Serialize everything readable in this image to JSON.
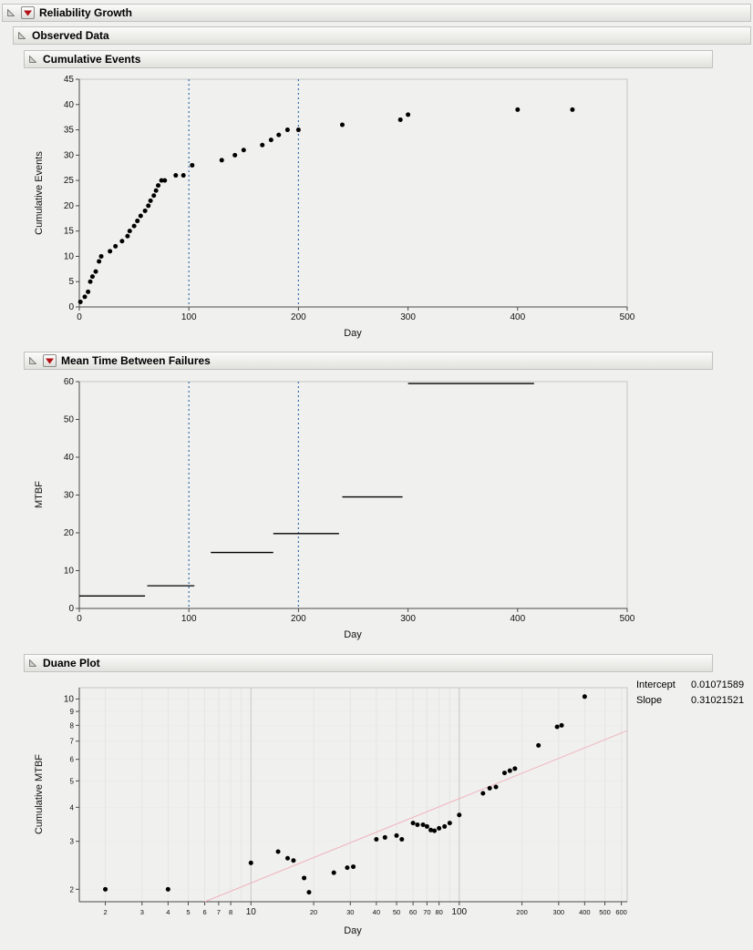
{
  "window": {
    "background": "#f0f0ee"
  },
  "headers": {
    "reliability_growth": "Reliability Growth",
    "observed_data": "Observed Data",
    "cumulative_events": "Cumulative Events",
    "mtbf": "Mean Time Between Failures",
    "duane": "Duane Plot"
  },
  "duane_fit": {
    "intercept_label": "Intercept",
    "intercept_value": "0.01071589",
    "slope_label": "Slope",
    "slope_value": "0.31021521"
  },
  "colors": {
    "reference_line": "#3a6fb0",
    "fit_line": "#f0b3be",
    "point": "#000000"
  },
  "chart_data": [
    {
      "id": "cumulative_events",
      "type": "scatter",
      "title": "Cumulative Events",
      "xlabel": "Day",
      "ylabel": "Cumulative Events",
      "xscale": "linear",
      "yscale": "linear",
      "xlim": [
        0,
        500
      ],
      "ylim": [
        0,
        45
      ],
      "xticks": [
        0,
        100,
        200,
        300,
        400,
        500
      ],
      "yticks": [
        0,
        5,
        10,
        15,
        20,
        25,
        30,
        35,
        40,
        45
      ],
      "ref_lines_x": [
        100,
        200
      ],
      "ref_line_color": "#3a6fb0",
      "x": [
        1,
        5,
        8,
        10,
        12,
        15,
        18,
        20,
        28,
        33,
        39,
        44,
        46,
        50,
        53,
        56,
        60,
        63,
        65,
        68,
        70,
        72,
        75,
        78,
        88,
        95,
        103,
        130,
        142,
        150,
        167,
        175,
        182,
        190,
        200,
        240,
        293,
        300,
        400,
        450
      ],
      "y": [
        1,
        2,
        3,
        5,
        6,
        7,
        9,
        10,
        11,
        12,
        13,
        14,
        15,
        16,
        17,
        18,
        19,
        20,
        21,
        22,
        23,
        24,
        25,
        25,
        26,
        26,
        28,
        29,
        30,
        31,
        32,
        33,
        34,
        35,
        35,
        36,
        37,
        38,
        39,
        39
      ]
    },
    {
      "id": "mtbf",
      "type": "segments",
      "title": "Mean Time Between Failures",
      "xlabel": "Day",
      "ylabel": "MTBF",
      "xscale": "linear",
      "yscale": "linear",
      "xlim": [
        0,
        500
      ],
      "ylim": [
        0,
        60
      ],
      "xticks": [
        0,
        100,
        200,
        300,
        400,
        500
      ],
      "yticks": [
        0,
        10,
        20,
        30,
        40,
        50,
        60
      ],
      "ref_lines_x": [
        100,
        200
      ],
      "ref_line_color": "#3a6fb0",
      "segments": [
        {
          "x1": 0,
          "x2": 60,
          "y": 3.3
        },
        {
          "x1": 62,
          "x2": 105,
          "y": 6.0
        },
        {
          "x1": 120,
          "x2": 177,
          "y": 14.8
        },
        {
          "x1": 177,
          "x2": 237,
          "y": 19.8
        },
        {
          "x1": 240,
          "x2": 295,
          "y": 29.5
        },
        {
          "x1": 300,
          "x2": 415,
          "y": 59.5
        }
      ]
    },
    {
      "id": "duane",
      "type": "scatter",
      "title": "Duane Plot",
      "xlabel": "Day",
      "ylabel": "Cumulative MTBF",
      "xscale": "log",
      "yscale": "log",
      "xlim": [
        1.5,
        640
      ],
      "ylim": [
        1.8,
        11
      ],
      "xticks": [
        2,
        3,
        4,
        5,
        6,
        7,
        8,
        10,
        20,
        30,
        40,
        50,
        60,
        70,
        80,
        100,
        200,
        300,
        400,
        500,
        600
      ],
      "xticks_major": [
        10,
        100
      ],
      "xgrid": [
        2,
        3,
        4,
        5,
        6,
        7,
        8,
        9,
        10,
        20,
        30,
        40,
        50,
        60,
        70,
        80,
        90,
        100,
        200,
        300,
        400,
        500,
        600
      ],
      "xgrid_major": [
        10,
        100
      ],
      "yticks": [
        2,
        3,
        4,
        5,
        6,
        7,
        8,
        9,
        10
      ],
      "yticks_major": [
        10
      ],
      "ygrid": [
        2,
        3,
        4,
        5,
        6,
        7,
        8,
        9,
        10
      ],
      "fit_line": {
        "x": [
          6,
          640
        ],
        "y": [
          1.8,
          7.65
        ],
        "color": "#f0b3be"
      },
      "fit_stats": {
        "intercept": 0.01071589,
        "slope": 0.31021521
      },
      "x": [
        2,
        4,
        10,
        13.5,
        15,
        16,
        18,
        19,
        25,
        29,
        31,
        40,
        44,
        50,
        53,
        60,
        63,
        67,
        70,
        73,
        76,
        80,
        85,
        90,
        100,
        130,
        140,
        150,
        165,
        175,
        185,
        240,
        295,
        310,
        400
      ],
      "y": [
        2.0,
        2.0,
        2.5,
        2.75,
        2.6,
        2.55,
        2.2,
        1.95,
        2.3,
        2.4,
        2.42,
        3.05,
        3.1,
        3.15,
        3.05,
        3.5,
        3.45,
        3.45,
        3.4,
        3.3,
        3.28,
        3.35,
        3.4,
        3.5,
        3.75,
        4.5,
        4.7,
        4.75,
        5.35,
        5.45,
        5.55,
        6.75,
        7.9,
        8.0,
        10.2
      ]
    }
  ]
}
